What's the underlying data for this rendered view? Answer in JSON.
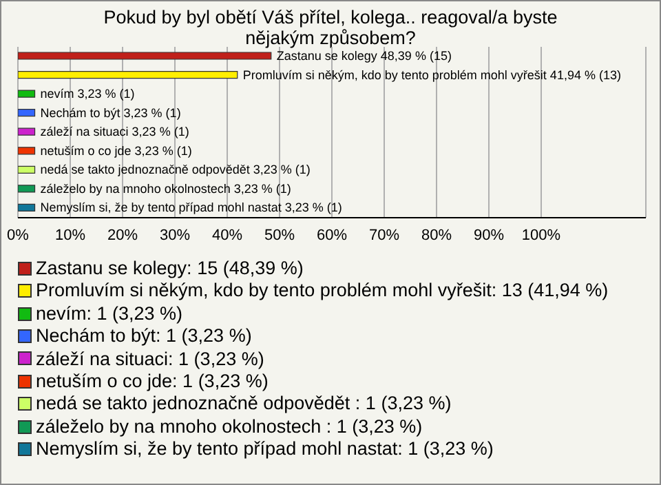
{
  "chart_data": {
    "type": "bar",
    "orientation": "horizontal",
    "stacked": true,
    "title": "Pokud by byl obětí Váš přítel, kolega.. reagoval/a byste nějakým způsobem?",
    "categories": [
      null,
      null,
      null,
      null,
      null,
      null,
      null,
      null,
      null
    ],
    "series": [
      {
        "name": "Zastanu se kolegy: 15 (48,39 %)",
        "color": "#c0201a",
        "values": [
          48.39,
          null,
          null,
          null,
          null,
          null,
          null,
          null,
          null
        ],
        "value_labels": [
          "Zastanu se kolegy 48,39 % (15)",
          null,
          null,
          null,
          null,
          null,
          null,
          null,
          null
        ]
      },
      {
        "name": "Promluvím si někým, kdo by tento problém mohl vyřešit: 13 (41,94 %)",
        "color": "#ffee00",
        "values": [
          null,
          41.94,
          null,
          null,
          null,
          null,
          null,
          null,
          null
        ],
        "value_labels": [
          null,
          "Promluvím si někým, kdo by tento problém mohl vyřešit 41,94 % (13)",
          null,
          null,
          null,
          null,
          null,
          null,
          null
        ]
      },
      {
        "name": "nevím: 1 (3,23 %)",
        "color": "#11bb11",
        "values": [
          null,
          null,
          3.23,
          null,
          null,
          null,
          null,
          null,
          null
        ],
        "value_labels": [
          null,
          null,
          "nevím 3,23 % (1)",
          null,
          null,
          null,
          null,
          null,
          null
        ]
      },
      {
        "name": "Nechám to být: 1 (3,23 %)",
        "color": "#3366ff",
        "values": [
          null,
          null,
          null,
          3.23,
          null,
          null,
          null,
          null,
          null
        ],
        "value_labels": [
          null,
          null,
          null,
          "Nechám to být 3,23 % (1)",
          null,
          null,
          null,
          null,
          null
        ]
      },
      {
        "name": "záleží na situaci: 1 (3,23 %)",
        "color": "#cc22cc",
        "values": [
          null,
          null,
          null,
          null,
          3.23,
          null,
          null,
          null,
          null
        ],
        "value_labels": [
          null,
          null,
          null,
          null,
          "záleží na situaci 3,23 % (1)",
          null,
          null,
          null,
          null
        ]
      },
      {
        "name": "netuším o co jde: 1 (3,23 %)",
        "color": "#ee3300",
        "values": [
          null,
          null,
          null,
          null,
          null,
          3.23,
          null,
          null,
          null
        ],
        "value_labels": [
          null,
          null,
          null,
          null,
          null,
          "netuším o co jde 3,23 % (1)",
          null,
          null,
          null
        ]
      },
      {
        "name": "nedá se takto jednoznačně odpovědět : 1 (3,23 %)",
        "color": "#ccff66",
        "values": [
          null,
          null,
          null,
          null,
          null,
          null,
          3.23,
          null,
          null
        ],
        "value_labels": [
          null,
          null,
          null,
          null,
          null,
          null,
          "nedá se takto jednoznačně odpovědět  3,23 % (1)",
          null,
          null
        ]
      },
      {
        "name": "záleželo by na mnoho okolnostech : 1 (3,23 %)",
        "color": "#119955",
        "values": [
          null,
          null,
          null,
          null,
          null,
          null,
          null,
          3.23,
          null
        ],
        "value_labels": [
          null,
          null,
          null,
          null,
          null,
          null,
          null,
          "záleželo by na mnoho okolnostech  3,23 % (1)",
          null
        ]
      },
      {
        "name": "Nemyslím si, že by tento případ mohl nastat: 1 (3,23 %)",
        "color": "#117799",
        "values": [
          null,
          null,
          null,
          null,
          null,
          null,
          null,
          null,
          3.23
        ],
        "value_labels": [
          null,
          null,
          null,
          null,
          null,
          null,
          null,
          null,
          "Nemyslím si, že by tento případ mohl nastat 3,23 % (1)"
        ]
      }
    ],
    "xlim": [
      0,
      120
    ],
    "xticks": [
      {
        "value": 0,
        "label": "0%"
      },
      {
        "value": 10,
        "label": "10%"
      },
      {
        "value": 20,
        "label": "20%"
      },
      {
        "value": 30,
        "label": "30%"
      },
      {
        "value": 40,
        "label": "40%"
      },
      {
        "value": 50,
        "label": "50%"
      },
      {
        "value": 60,
        "label": "60%"
      },
      {
        "value": 70,
        "label": "70%"
      },
      {
        "value": 80,
        "label": "80%"
      },
      {
        "value": 90,
        "label": "90%"
      },
      {
        "value": 100,
        "label": "100%"
      }
    ],
    "grid": "x",
    "legend": "bottom",
    "tick_labels": "x"
  }
}
